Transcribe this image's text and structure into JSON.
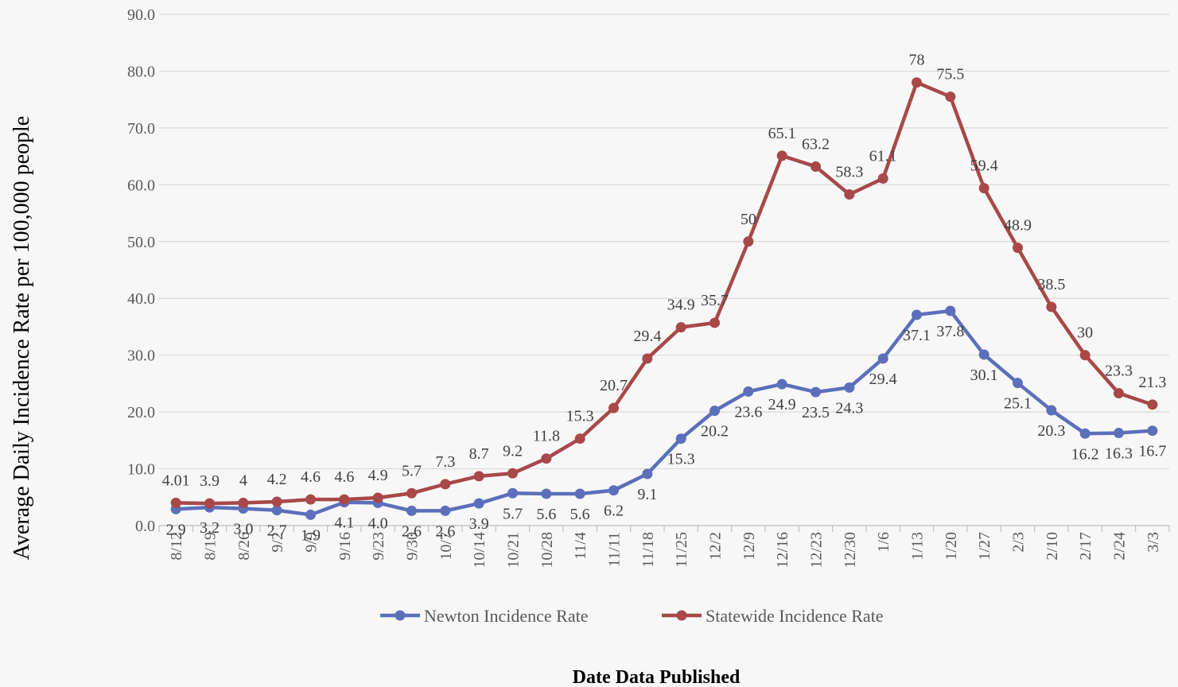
{
  "chart_data": {
    "type": "line",
    "title": "",
    "xlabel": "Date Data Published",
    "ylabel": "Average Daily Incidence Rate per 100,000 people",
    "ylim": [
      0,
      90
    ],
    "y_ticks": [
      "0.0",
      "10.0",
      "20.0",
      "30.0",
      "40.0",
      "50.0",
      "60.0",
      "70.0",
      "80.0",
      "90.0"
    ],
    "grid": true,
    "legend": "bottom",
    "categories": [
      "8/12",
      "8/19",
      "8/26",
      "9/2",
      "9/9",
      "9/16",
      "9/23",
      "9/30",
      "10/7",
      "10/14",
      "10/21",
      "10/28",
      "11/4",
      "11/11",
      "11/18",
      "11/25",
      "12/2",
      "12/9",
      "12/16",
      "12/23",
      "12/30",
      "1/6",
      "1/13",
      "1/20",
      "1/27",
      "2/3",
      "2/10",
      "2/17",
      "2/24",
      "3/3"
    ],
    "series": [
      {
        "name": "Newton Incidence Rate",
        "color": "#5b6fbb",
        "values": [
          2.9,
          3.2,
          3.0,
          2.7,
          1.9,
          4.1,
          4.0,
          2.6,
          2.6,
          3.9,
          5.7,
          5.6,
          5.6,
          6.2,
          9.1,
          15.3,
          20.2,
          23.6,
          24.9,
          23.5,
          24.3,
          29.4,
          37.1,
          37.8,
          30.1,
          25.1,
          20.3,
          16.2,
          16.3,
          16.7
        ],
        "labels": [
          "2.9",
          "3.2",
          "3.0",
          "2.7",
          "1.9",
          "4.1",
          "4.0",
          "2.6",
          "2.6",
          "3.9",
          "5.7",
          "5.6",
          "5.6",
          "6.2",
          "9.1",
          "15.3",
          "20.2",
          "23.6",
          "24.9",
          "23.5",
          "24.3",
          "29.4",
          "37.1",
          "37.8",
          "30.1",
          "25.1",
          "20.3",
          "16.2",
          "16.3",
          "16.7"
        ]
      },
      {
        "name": "Statewide Incidence Rate",
        "color": "#a84848",
        "values": [
          4.01,
          3.9,
          4,
          4.2,
          4.6,
          4.6,
          4.9,
          5.7,
          7.3,
          8.7,
          9.2,
          11.8,
          15.3,
          20.7,
          29.4,
          34.9,
          35.7,
          50,
          65.1,
          63.2,
          58.3,
          61.1,
          78,
          75.5,
          59.4,
          48.9,
          38.5,
          30,
          23.3,
          21.3
        ],
        "labels": [
          "4.01",
          "3.9",
          "4",
          "4.2",
          "4.6",
          "4.6",
          "4.9",
          "5.7",
          "7.3",
          "8.7",
          "9.2",
          "11.8",
          "15.3",
          "20.7",
          "29.4",
          "34.9",
          "35.7",
          "50",
          "65.1",
          "63.2",
          "58.3",
          "61.1",
          "78",
          "75.5",
          "59.4",
          "48.9",
          "38.5",
          "30",
          "23.3",
          "21.3"
        ]
      }
    ]
  }
}
